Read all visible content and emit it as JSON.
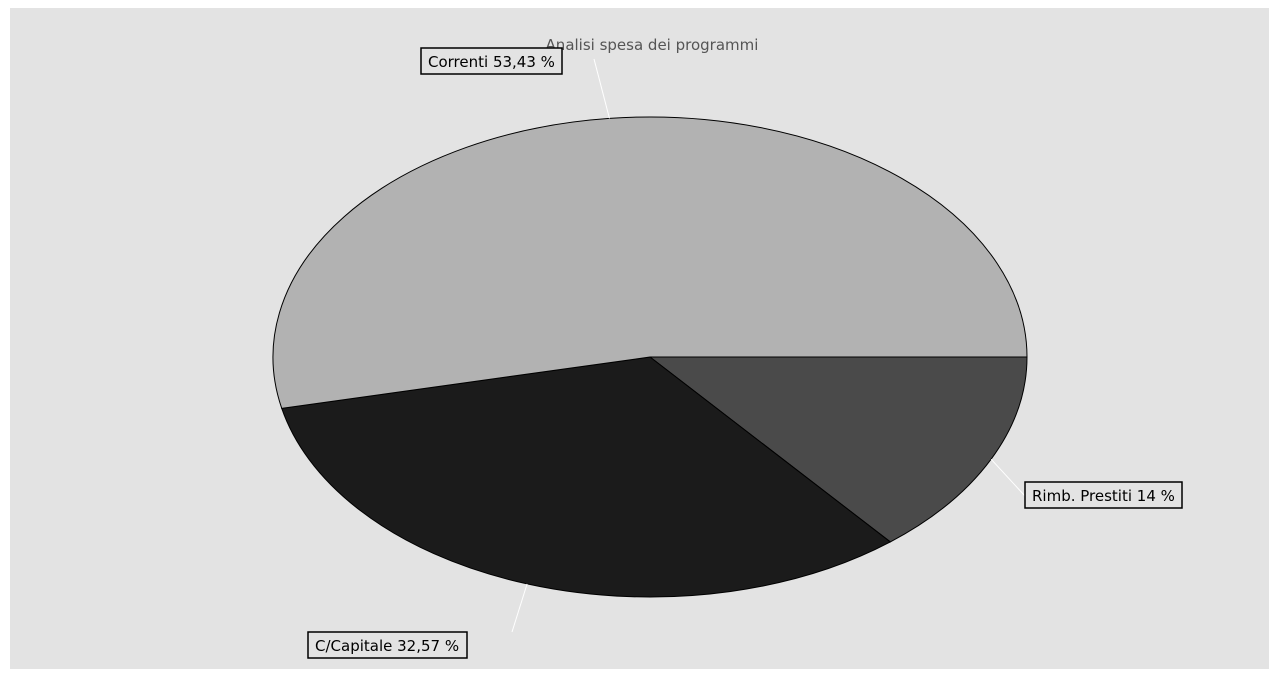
{
  "chart_data": {
    "type": "pie",
    "title": "Analisi spesa dei programmi",
    "slices": [
      {
        "label": "Rimb. Prestiti 14 %",
        "value": 14.0,
        "color": "#4a4a4a"
      },
      {
        "label": "C/Capitale 32,57 %",
        "value": 32.57,
        "color": "#1b1b1b"
      },
      {
        "label": "Correnti 53,43 %",
        "value": 53.43,
        "color": "#b2b2b2"
      }
    ],
    "background": "#e3e3e3"
  }
}
